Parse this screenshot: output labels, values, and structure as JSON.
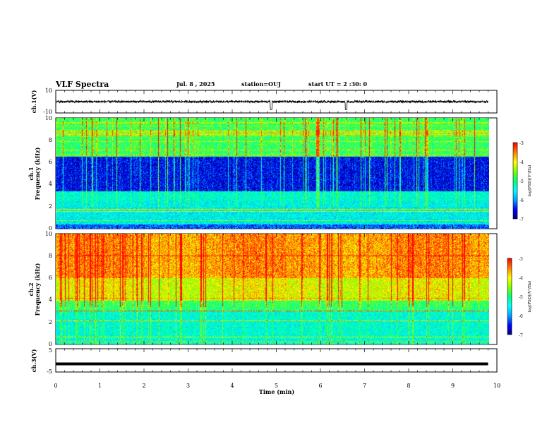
{
  "header": {
    "title": "VLF Spectra",
    "date": "Jul. 8 , 2025",
    "station": "station=OUJ",
    "start_ut": "start UT = 2 :30: 0"
  },
  "chart_data": [
    {
      "type": "line",
      "panel": "ch1-waveform",
      "ylabel": "ch.1(V)",
      "ylim": [
        -10,
        10
      ],
      "yticks": [
        "10",
        "-10"
      ],
      "xlim": [
        0,
        9.8
      ],
      "baseline": 0,
      "description_values": {
        "mean": 0,
        "typical_amplitude": 1.2,
        "spike_times_min": [
          4.88,
          6.58
        ]
      }
    },
    {
      "type": "heatmap",
      "panel": "ch1-spectrogram",
      "ylabel_line1": "ch.1",
      "ylabel_line2": "Frequency (kHz)",
      "ylim": [
        0,
        10
      ],
      "yticks": [
        "0",
        "2",
        "4",
        "6",
        "8",
        "10"
      ],
      "xlim": [
        0,
        9.8
      ],
      "colorbar": {
        "label": "log(PSD)(V²/Hz)",
        "ticks": [
          "-3",
          "-4",
          "-5",
          "-6",
          "-7"
        ],
        "range": [
          -7,
          -3
        ]
      },
      "bands": [
        {
          "f_low": 0,
          "f_high": 0.4,
          "level": -6.2
        },
        {
          "f_low": 0.4,
          "f_high": 2.6,
          "level": -5.5
        },
        {
          "f_low": 2.6,
          "f_high": 3.4,
          "level": -5.4
        },
        {
          "f_low": 3.4,
          "f_high": 6.5,
          "level": -6.7
        },
        {
          "f_low": 6.5,
          "f_high": 10,
          "level": -5.0
        }
      ]
    },
    {
      "type": "heatmap",
      "panel": "ch2-spectrogram",
      "ylabel_line1": "ch.2",
      "ylabel_line2": "Frequency (kHz)",
      "ylim": [
        0,
        10
      ],
      "yticks": [
        "0",
        "2",
        "4",
        "6",
        "8",
        "10"
      ],
      "xlim": [
        0,
        9.8
      ],
      "colorbar": {
        "label": "log(PSD)(V²/Hz)",
        "ticks": [
          "-3",
          "-4",
          "-5",
          "-6",
          "-7"
        ],
        "range": [
          -7,
          -3
        ]
      },
      "bands": [
        {
          "f_low": 0,
          "f_high": 3.0,
          "level": -5.4
        },
        {
          "f_low": 3.0,
          "f_high": 4.0,
          "level": -5.0
        },
        {
          "f_low": 4.0,
          "f_high": 6.0,
          "level": -4.4
        },
        {
          "f_low": 6.0,
          "f_high": 10,
          "level": -3.9
        }
      ]
    },
    {
      "type": "line",
      "panel": "ch3-waveform",
      "ylabel": "ch.3(V)",
      "ylim": [
        -5,
        5
      ],
      "yticks": [
        "5",
        "-5"
      ],
      "xlim": [
        0,
        9.8
      ],
      "values_constant": -1.5
    }
  ],
  "xaxis": {
    "label": "Time (min)",
    "ticks": [
      "0",
      "1",
      "2",
      "3",
      "4",
      "5",
      "6",
      "7",
      "8",
      "9",
      "10"
    ],
    "range": [
      0,
      10
    ]
  },
  "colors": {
    "colormap": [
      "#000080",
      "#0000ff",
      "#00a0ff",
      "#00ffff",
      "#00ff80",
      "#80ff00",
      "#ffff00",
      "#ff8000",
      "#ff0000",
      "#ffffff"
    ]
  }
}
